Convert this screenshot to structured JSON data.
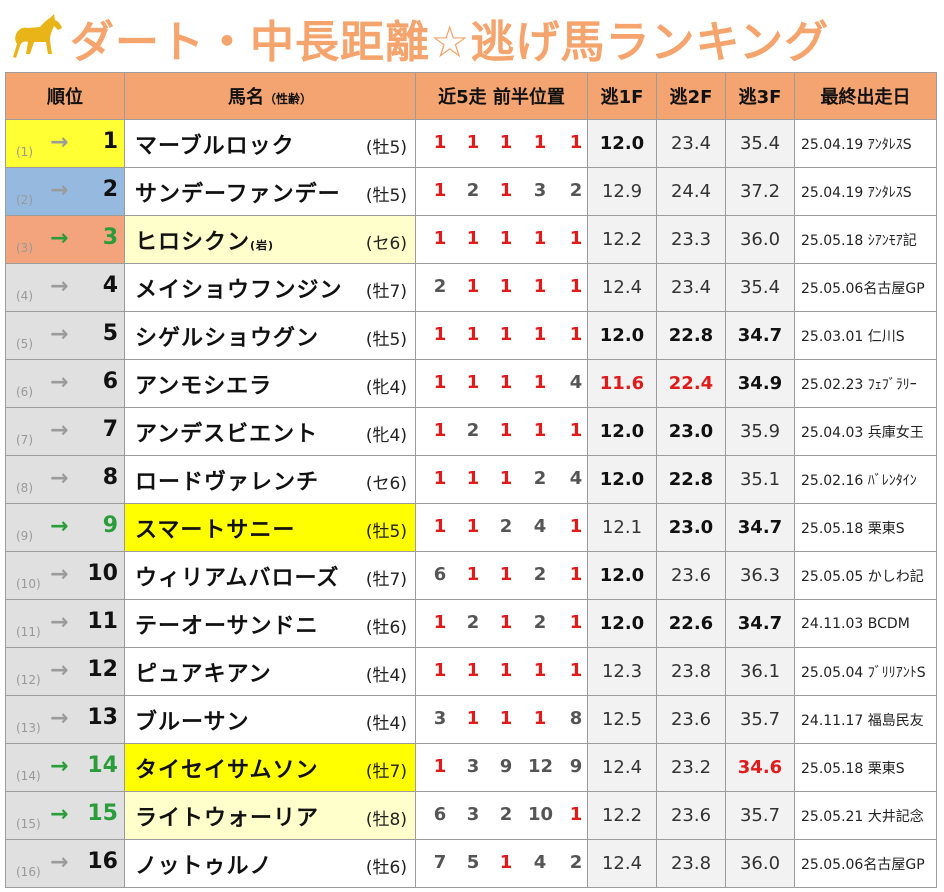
{
  "title": "ダート・中長距離☆逃げ馬ランキング",
  "colors": {
    "accent": "#f4a46c",
    "up_green": "#2a9d3a",
    "red": "#e01b1b"
  },
  "headers": {
    "rank": "順位",
    "name": "馬名",
    "name_sub": "（性齢）",
    "positions": "近5走 前半位置",
    "f1": "逃1F",
    "f2": "逃2F",
    "f3": "逃3F",
    "last": "最終出走日"
  },
  "rows": [
    {
      "prev": "(1)",
      "arrow": "→",
      "up": false,
      "rank": "1",
      "rank_bg": "y",
      "name": "マーブルロック",
      "suffix": "",
      "name_bg": "",
      "sexage": "(牡5)",
      "pos": [
        "1",
        "1",
        "1",
        "1",
        "1"
      ],
      "pos_red": [
        1,
        1,
        1,
        1,
        1
      ],
      "f1": "12.0",
      "f2": "23.4",
      "f3": "35.4",
      "f_style": [
        "bold",
        "",
        ""
      ],
      "last": "25.04.19 ｱﾝﾀﾚｽS"
    },
    {
      "prev": "(2)",
      "arrow": "→",
      "up": false,
      "rank": "2",
      "rank_bg": "b",
      "name": "サンデーファンデー",
      "suffix": "",
      "name_bg": "",
      "sexage": "(牡5)",
      "pos": [
        "1",
        "2",
        "1",
        "3",
        "2"
      ],
      "pos_red": [
        1,
        0,
        1,
        0,
        0
      ],
      "f1": "12.9",
      "f2": "24.4",
      "f3": "37.2",
      "f_style": [
        "",
        "",
        ""
      ],
      "last": "25.04.19 ｱﾝﾀﾚｽS"
    },
    {
      "prev": "(3)",
      "arrow": "→",
      "up": true,
      "rank": "3",
      "rank_bg": "o",
      "name": "ヒロシクン",
      "suffix": "(岩)",
      "name_bg": "lt",
      "sexage": "(セ6)",
      "pos": [
        "1",
        "1",
        "1",
        "1",
        "1"
      ],
      "pos_red": [
        1,
        1,
        1,
        1,
        1
      ],
      "f1": "12.2",
      "f2": "23.3",
      "f3": "36.0",
      "f_style": [
        "",
        "",
        ""
      ],
      "last": "25.05.18 ｼｱﾝﾓｱ記"
    },
    {
      "prev": "(4)",
      "arrow": "→",
      "up": false,
      "rank": "4",
      "rank_bg": "",
      "name": "メイショウフンジン",
      "suffix": "",
      "name_bg": "",
      "sexage": "(牡7)",
      "pos": [
        "2",
        "1",
        "1",
        "1",
        "1"
      ],
      "pos_red": [
        0,
        1,
        1,
        1,
        1
      ],
      "f1": "12.4",
      "f2": "23.4",
      "f3": "35.4",
      "f_style": [
        "",
        "",
        ""
      ],
      "last": "25.05.06名古屋GP"
    },
    {
      "prev": "(5)",
      "arrow": "→",
      "up": false,
      "rank": "5",
      "rank_bg": "",
      "name": "シゲルショウグン",
      "suffix": "",
      "name_bg": "",
      "sexage": "(牡5)",
      "pos": [
        "1",
        "1",
        "1",
        "1",
        "1"
      ],
      "pos_red": [
        1,
        1,
        1,
        1,
        1
      ],
      "f1": "12.0",
      "f2": "22.8",
      "f3": "34.7",
      "f_style": [
        "bold",
        "bold",
        "bold"
      ],
      "last": "25.03.01 仁川S"
    },
    {
      "prev": "(6)",
      "arrow": "→",
      "up": false,
      "rank": "6",
      "rank_bg": "",
      "name": "アンモシエラ",
      "suffix": "",
      "name_bg": "",
      "sexage": "(牝4)",
      "pos": [
        "1",
        "1",
        "1",
        "1",
        "4"
      ],
      "pos_red": [
        1,
        1,
        1,
        1,
        0
      ],
      "f1": "11.6",
      "f2": "22.4",
      "f3": "34.9",
      "f_style": [
        "red",
        "red",
        "bold"
      ],
      "last": "25.02.23 ﾌｪﾌﾞﾗﾘｰ"
    },
    {
      "prev": "(7)",
      "arrow": "→",
      "up": false,
      "rank": "7",
      "rank_bg": "",
      "name": "アンデスビエント",
      "suffix": "",
      "name_bg": "",
      "sexage": "(牝4)",
      "pos": [
        "1",
        "2",
        "1",
        "1",
        "1"
      ],
      "pos_red": [
        1,
        0,
        1,
        1,
        1
      ],
      "f1": "12.0",
      "f2": "23.0",
      "f3": "35.9",
      "f_style": [
        "bold",
        "bold",
        ""
      ],
      "last": "25.04.03 兵庫女王"
    },
    {
      "prev": "(8)",
      "arrow": "→",
      "up": false,
      "rank": "8",
      "rank_bg": "",
      "name": "ロードヴァレンチ",
      "suffix": "",
      "name_bg": "",
      "sexage": "(セ6)",
      "pos": [
        "1",
        "1",
        "1",
        "2",
        "4"
      ],
      "pos_red": [
        1,
        1,
        1,
        0,
        0
      ],
      "f1": "12.0",
      "f2": "22.8",
      "f3": "35.1",
      "f_style": [
        "bold",
        "bold",
        ""
      ],
      "last": "25.02.16 ﾊﾞﾚﾝﾀｲﾝ"
    },
    {
      "prev": "(9)",
      "arrow": "→",
      "up": true,
      "rank": "9",
      "rank_bg": "",
      "name": "スマートサニー",
      "suffix": "",
      "name_bg": "hl",
      "sexage": "(牡5)",
      "pos": [
        "1",
        "1",
        "2",
        "4",
        "1"
      ],
      "pos_red": [
        1,
        1,
        0,
        0,
        1
      ],
      "f1": "12.1",
      "f2": "23.0",
      "f3": "34.7",
      "f_style": [
        "",
        "bold",
        "bold"
      ],
      "last": "25.05.18 栗東S"
    },
    {
      "prev": "(10)",
      "arrow": "→",
      "up": false,
      "rank": "10",
      "rank_bg": "",
      "name": "ウィリアムバローズ",
      "suffix": "",
      "name_bg": "",
      "sexage": "(牡7)",
      "pos": [
        "6",
        "1",
        "1",
        "2",
        "1"
      ],
      "pos_red": [
        0,
        1,
        1,
        0,
        1
      ],
      "f1": "12.0",
      "f2": "23.6",
      "f3": "36.3",
      "f_style": [
        "bold",
        "",
        ""
      ],
      "last": "25.05.05 かしわ記"
    },
    {
      "prev": "(11)",
      "arrow": "→",
      "up": false,
      "rank": "11",
      "rank_bg": "",
      "name": "テーオーサンドニ",
      "suffix": "",
      "name_bg": "",
      "sexage": "(牡6)",
      "pos": [
        "1",
        "2",
        "1",
        "2",
        "1"
      ],
      "pos_red": [
        1,
        0,
        1,
        0,
        1
      ],
      "f1": "12.0",
      "f2": "22.6",
      "f3": "34.7",
      "f_style": [
        "bold",
        "bold",
        "bold"
      ],
      "last": "24.11.03 BCDM"
    },
    {
      "prev": "(12)",
      "arrow": "→",
      "up": false,
      "rank": "12",
      "rank_bg": "",
      "name": "ピュアキアン",
      "suffix": "",
      "name_bg": "",
      "sexage": "(牡4)",
      "pos": [
        "1",
        "1",
        "1",
        "1",
        "1"
      ],
      "pos_red": [
        1,
        1,
        1,
        1,
        1
      ],
      "f1": "12.3",
      "f2": "23.8",
      "f3": "36.1",
      "f_style": [
        "",
        "",
        ""
      ],
      "last": "25.05.04 ﾌﾞﾘﾘｱﾝﾄS"
    },
    {
      "prev": "(13)",
      "arrow": "→",
      "up": false,
      "rank": "13",
      "rank_bg": "",
      "name": "ブルーサン",
      "suffix": "",
      "name_bg": "",
      "sexage": "(牡4)",
      "pos": [
        "3",
        "1",
        "1",
        "1",
        "8"
      ],
      "pos_red": [
        0,
        1,
        1,
        1,
        0
      ],
      "f1": "12.5",
      "f2": "23.6",
      "f3": "35.7",
      "f_style": [
        "",
        "",
        ""
      ],
      "last": "24.11.17 福島民友"
    },
    {
      "prev": "(14)",
      "arrow": "→",
      "up": true,
      "rank": "14",
      "rank_bg": "",
      "name": "タイセイサムソン",
      "suffix": "",
      "name_bg": "hl",
      "sexage": "(牡7)",
      "pos": [
        "1",
        "3",
        "9",
        "12",
        "9"
      ],
      "pos_red": [
        1,
        0,
        0,
        0,
        0
      ],
      "f1": "12.4",
      "f2": "23.2",
      "f3": "34.6",
      "f_style": [
        "",
        "",
        "red"
      ],
      "last": "25.05.18 栗東S"
    },
    {
      "prev": "(15)",
      "arrow": "→",
      "up": true,
      "rank": "15",
      "rank_bg": "",
      "name": "ライトウォーリア",
      "suffix": "",
      "name_bg": "lt",
      "sexage": "(牡8)",
      "pos": [
        "6",
        "3",
        "2",
        "10",
        "1"
      ],
      "pos_red": [
        0,
        0,
        0,
        0,
        1
      ],
      "f1": "12.2",
      "f2": "23.6",
      "f3": "35.7",
      "f_style": [
        "",
        "",
        ""
      ],
      "last": "25.05.21 大井記念"
    },
    {
      "prev": "(16)",
      "arrow": "→",
      "up": false,
      "rank": "16",
      "rank_bg": "",
      "name": "ノットゥルノ",
      "suffix": "",
      "name_bg": "",
      "sexage": "(牡6)",
      "pos": [
        "7",
        "5",
        "1",
        "4",
        "2"
      ],
      "pos_red": [
        0,
        0,
        1,
        0,
        0
      ],
      "f1": "12.4",
      "f2": "23.8",
      "f3": "36.0",
      "f_style": [
        "",
        "",
        ""
      ],
      "last": "25.05.06名古屋GP"
    }
  ]
}
